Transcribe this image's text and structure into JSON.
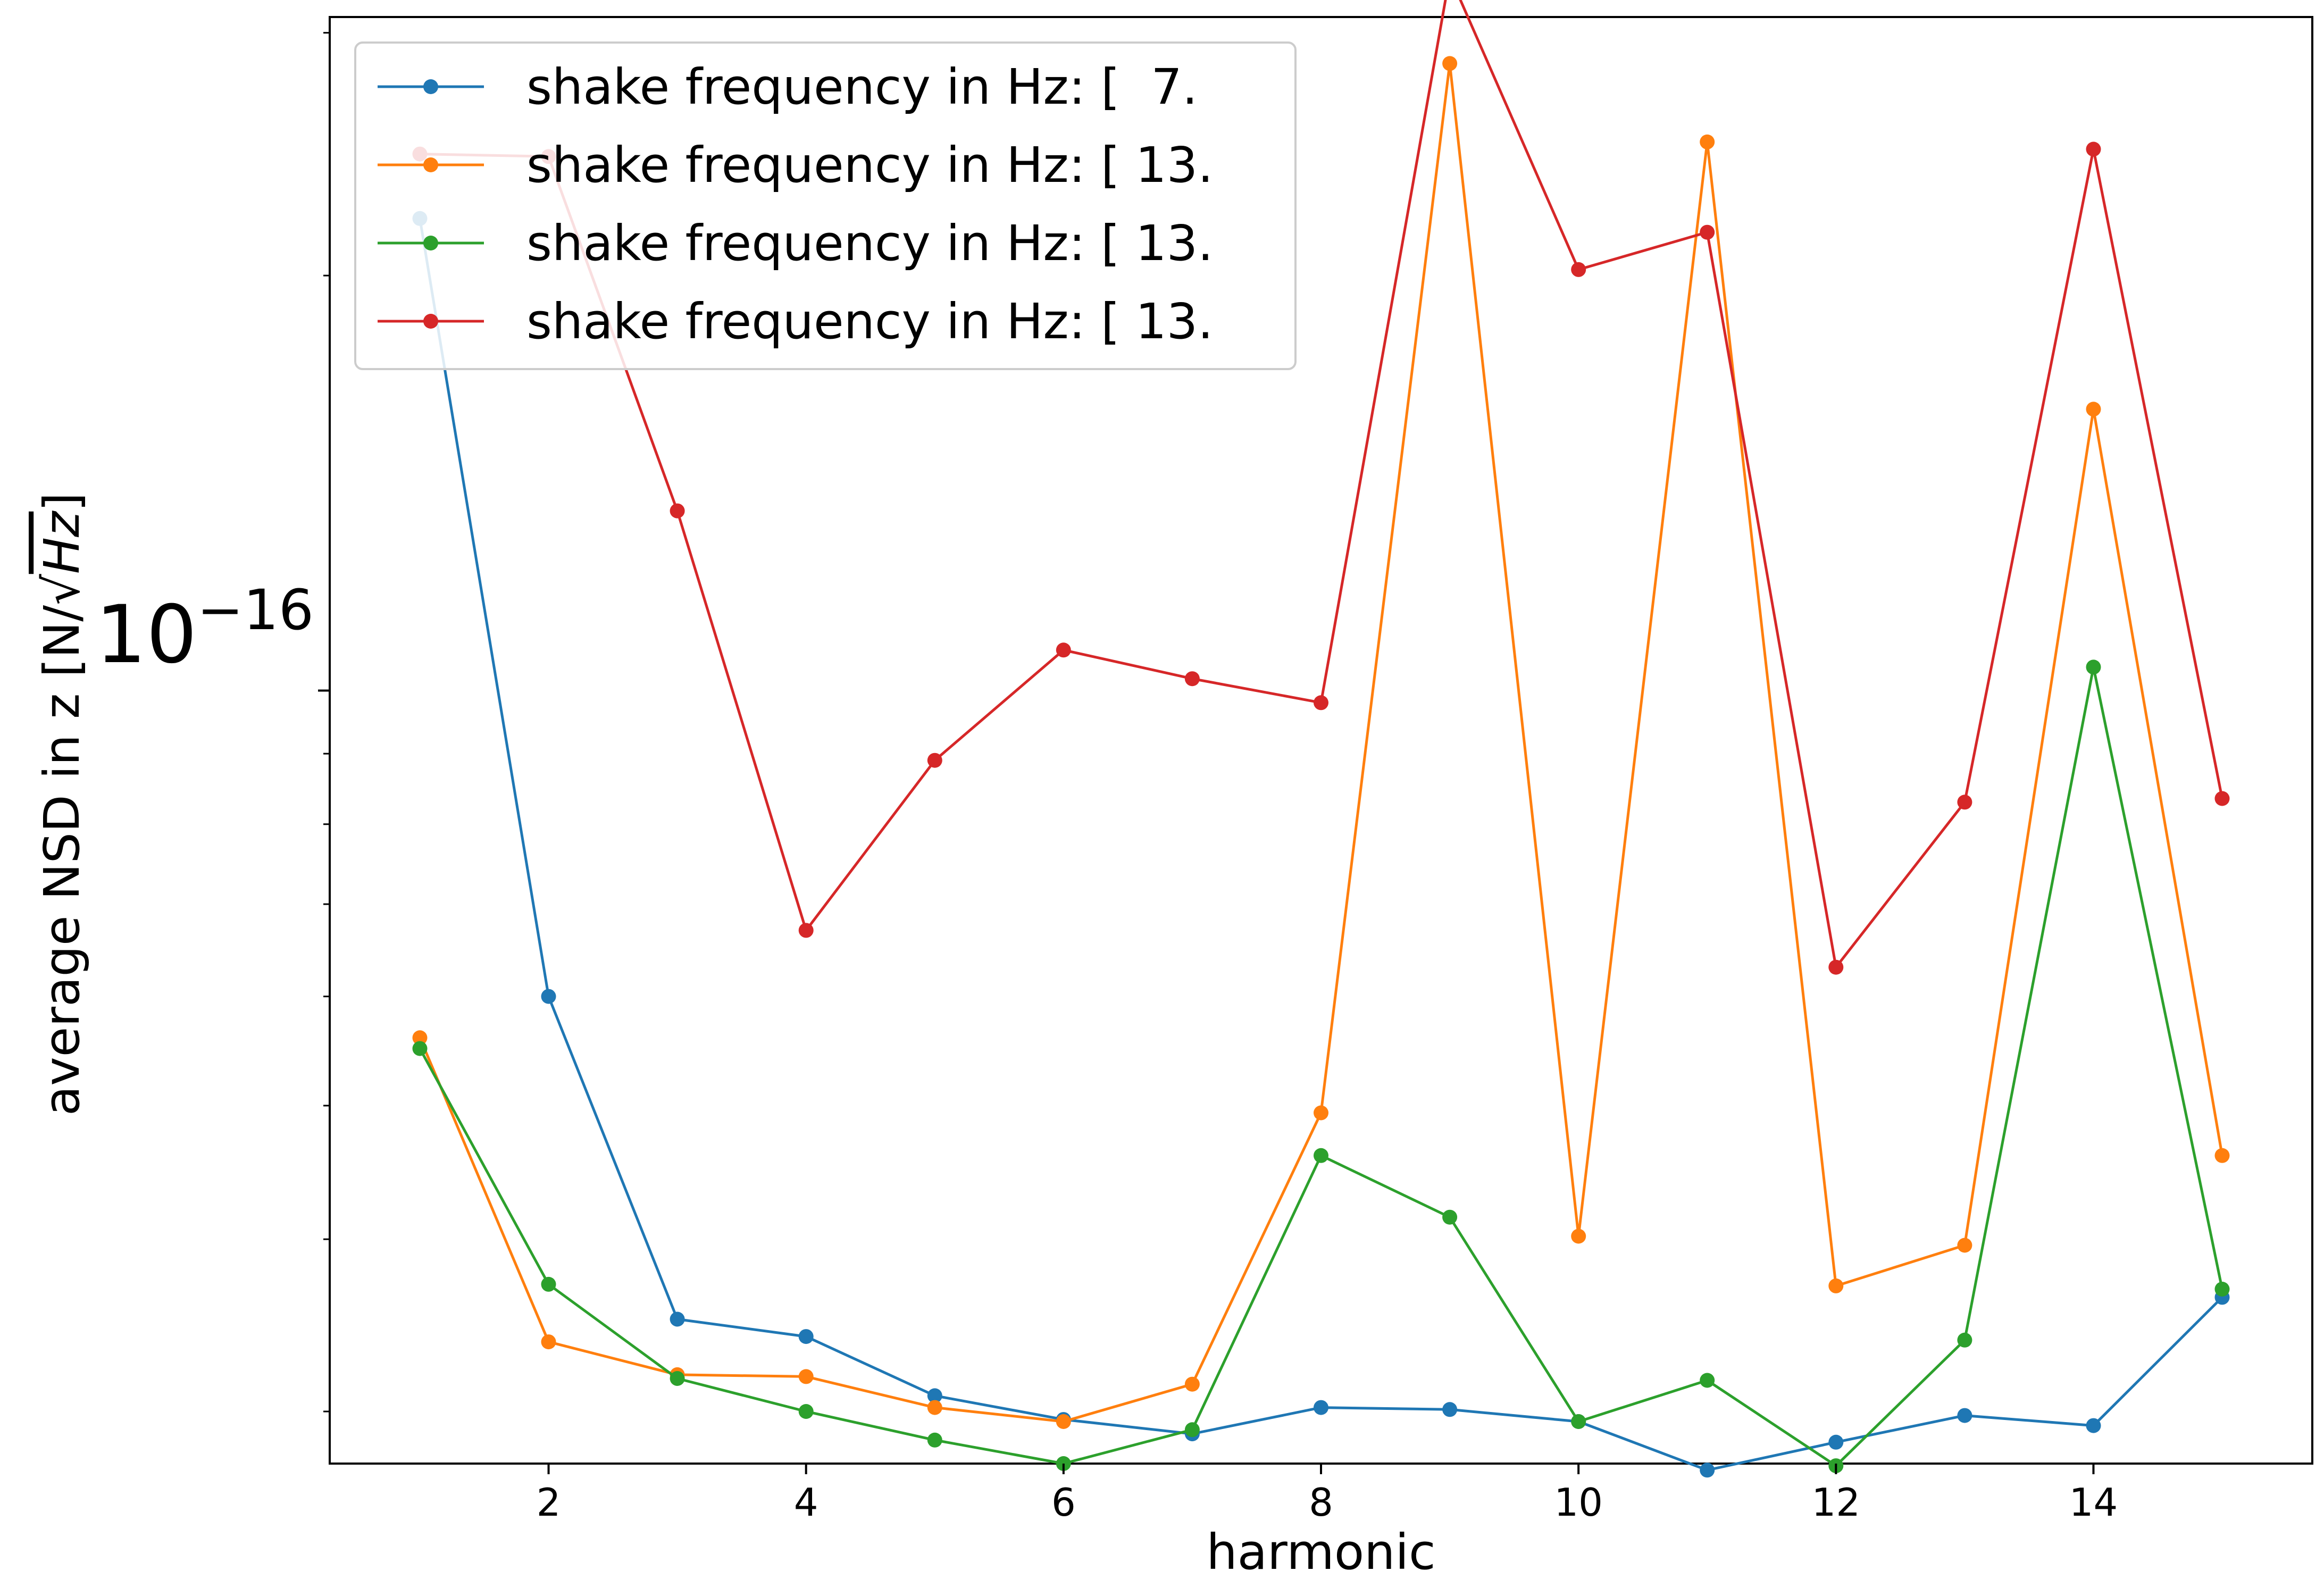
{
  "chart_data": {
    "type": "line",
    "title": "",
    "xlabel": "harmonic",
    "ylabel_prefix": "average NSD in z",
    "ylabel_unit_left": "[N/",
    "ylabel_unit_sqrt": "Hz",
    "ylabel_unit_right": "]",
    "y_scale": "log",
    "xlim": [
      0.3,
      15.7
    ],
    "ylim": [
      2.75e-17,
      3.08e-16
    ],
    "x_ticks": [
      2,
      4,
      6,
      8,
      10,
      12,
      14
    ],
    "x_tick_labels": [
      "2",
      "4",
      "6",
      "8",
      "10",
      "12",
      "14"
    ],
    "y_major_tick": {
      "value": 1e-16,
      "base": "10",
      "exponent": "−16"
    },
    "y_minor_ticks": [
      3e-17,
      4e-17,
      5e-17,
      6e-17,
      7e-17,
      8e-17,
      9e-17,
      2e-16,
      3e-16
    ],
    "grid": false,
    "legend_position": "upper-left",
    "x": [
      1,
      2,
      3,
      4,
      5,
      6,
      7,
      8,
      9,
      10,
      11,
      12,
      13,
      14,
      15
    ],
    "series": [
      {
        "name": "shake frequency in Hz: [  7.",
        "color": "#1f77b4",
        "values": [
          2.2e-16,
          6e-17,
          3.5e-17,
          3.4e-17,
          3.08e-17,
          2.96e-17,
          2.89e-17,
          3.02e-17,
          3.01e-17,
          2.95e-17,
          2.72e-17,
          2.85e-17,
          2.98e-17,
          2.93e-17,
          3.63e-17
        ]
      },
      {
        "name": "shake frequency in Hz: [ 13.",
        "color": "#ff7f0e",
        "values": [
          5.6e-17,
          3.37e-17,
          3.19e-17,
          3.18e-17,
          3.02e-17,
          2.95e-17,
          3.14e-17,
          4.94e-17,
          2.85e-16,
          4.02e-17,
          2.5e-16,
          3.7e-17,
          3.96e-17,
          1.6e-16,
          4.6e-17
        ]
      },
      {
        "name": "shake frequency in Hz: [ 13.",
        "color": "#2ca02c",
        "values": [
          5.5e-17,
          3.71e-17,
          3.17e-17,
          3e-17,
          2.86e-17,
          2.75e-17,
          2.91e-17,
          4.6e-17,
          4.15e-17,
          2.95e-17,
          3.16e-17,
          2.74e-17,
          3.38e-17,
          1.04e-16,
          3.68e-17
        ]
      },
      {
        "name": "shake frequency in Hz: [ 13.",
        "color": "#d62728",
        "values": [
          2.45e-16,
          2.44e-16,
          1.35e-16,
          6.7e-17,
          8.9e-17,
          1.07e-16,
          1.02e-16,
          9.8e-17,
          3.3e-16,
          2.02e-16,
          2.15e-16,
          6.3e-17,
          8.3e-17,
          2.47e-16,
          8.35e-17
        ]
      }
    ]
  }
}
